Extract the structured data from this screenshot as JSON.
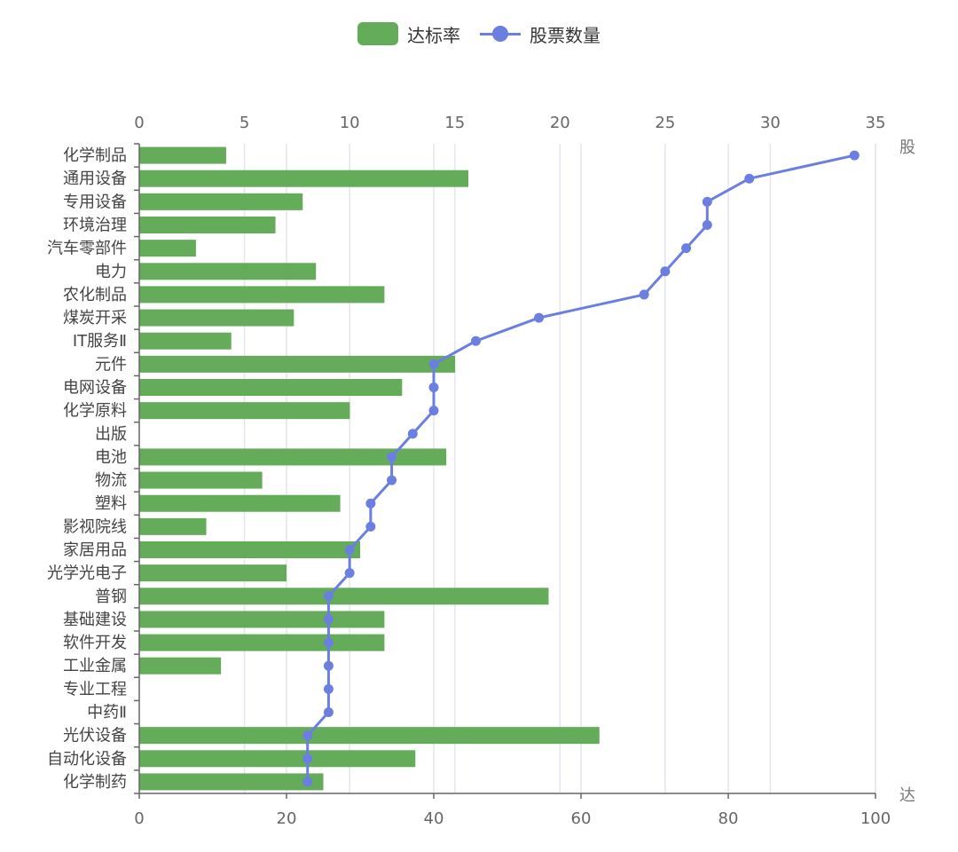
{
  "colors": {
    "bar": "#64ac5a",
    "line": "#6b7fe0",
    "grid": "#e3e6ee",
    "axis": "#666666"
  },
  "legend": {
    "bar_label": "达标率",
    "line_label": "股票数量"
  },
  "edge_labels": {
    "top_right": "股",
    "bottom_right": "达"
  },
  "chart_data": {
    "type": "bar",
    "orientation": "horizontal",
    "categories": [
      "化学制品",
      "通用设备",
      "专用设备",
      "环境治理",
      "汽车零部件",
      "电力",
      "农化制品",
      "煤炭开采",
      "IT服务Ⅱ",
      "元件",
      "电网设备",
      "化学原料",
      "出版",
      "电池",
      "物流",
      "塑料",
      "影视院线",
      "家居用品",
      "光学光电子",
      "普钢",
      "基础建设",
      "软件开发",
      "工业金属",
      "专业工程",
      "中药Ⅱ",
      "光伏设备",
      "自动化设备",
      "化学制药"
    ],
    "series": [
      {
        "name": "达标率",
        "type": "bar",
        "axis": "bottom",
        "values": [
          11.8,
          44.7,
          22.2,
          18.5,
          7.7,
          24.0,
          33.3,
          21.0,
          12.5,
          42.9,
          35.7,
          28.6,
          0,
          41.7,
          16.7,
          27.3,
          9.1,
          30.0,
          20.0,
          55.6,
          33.3,
          33.3,
          11.1,
          0,
          0,
          62.5,
          37.5,
          25.0
        ]
      },
      {
        "name": "股票数量",
        "type": "line",
        "axis": "top",
        "values": [
          34,
          29,
          27,
          27,
          26,
          25,
          24,
          19,
          16,
          14,
          14,
          14,
          13,
          12,
          12,
          11,
          11,
          10,
          10,
          9,
          9,
          9,
          9,
          9,
          9,
          8,
          8,
          8
        ]
      }
    ],
    "x_bottom_ticks": [
      0,
      20,
      40,
      60,
      80,
      100
    ],
    "x_bottom_range": [
      0,
      100
    ],
    "x_top_ticks": [
      0,
      5,
      10,
      15,
      20,
      25,
      30,
      35
    ],
    "x_top_range": [
      0,
      35
    ],
    "grid": true,
    "legend_position": "top-center"
  }
}
